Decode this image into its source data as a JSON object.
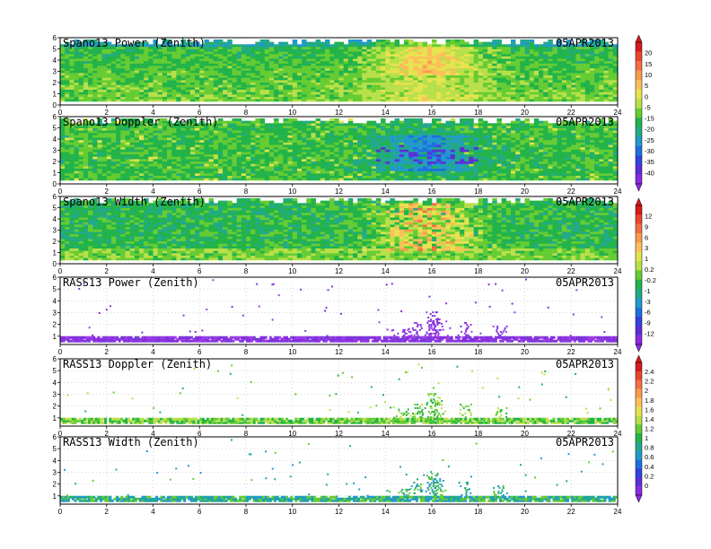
{
  "chart_data": [
    {
      "type": "heatmap",
      "title": "Spano13 Power (Zenith)",
      "date": "05APR2013",
      "x_ticks": [
        "0",
        "2",
        "4",
        "6",
        "8",
        "10",
        "12",
        "14",
        "16",
        "18",
        "20",
        "22",
        "24"
      ],
      "y_ticks": [
        "0",
        "1",
        "2",
        "3",
        "4",
        "5",
        "6"
      ],
      "xlim": [
        0,
        24
      ],
      "ylim": [
        0,
        6
      ],
      "colorbar_group": 0,
      "coverage": "full",
      "value_range": [
        -40,
        20
      ]
    },
    {
      "type": "heatmap",
      "title": "Spano13 Doppler (Zenith)",
      "date": "05APR2013",
      "x_ticks": [
        "0",
        "2",
        "4",
        "6",
        "8",
        "10",
        "12",
        "14",
        "16",
        "18",
        "20",
        "22",
        "24"
      ],
      "y_ticks": [
        "0",
        "1",
        "2",
        "3",
        "4",
        "5",
        "6"
      ],
      "xlim": [
        0,
        24
      ],
      "ylim": [
        0,
        6
      ],
      "colorbar_group": 0,
      "coverage": "full",
      "value_range": [
        -12,
        12
      ]
    },
    {
      "type": "heatmap",
      "title": "Spano13 Width (Zenith)",
      "date": "05APR2013",
      "x_ticks": [
        "0",
        "2",
        "4",
        "6",
        "8",
        "10",
        "12",
        "14",
        "16",
        "18",
        "20",
        "22",
        "24"
      ],
      "y_ticks": [
        "0",
        "1",
        "2",
        "3",
        "4",
        "5",
        "6"
      ],
      "xlim": [
        0,
        24
      ],
      "ylim": [
        0,
        6
      ],
      "colorbar_group": 1,
      "coverage": "full",
      "value_range": [
        0,
        2.4
      ]
    },
    {
      "type": "heatmap",
      "title": "RASS13 Power (Zenith)",
      "date": "05APR2013",
      "x_ticks": [
        "0",
        "2",
        "4",
        "6",
        "8",
        "10",
        "12",
        "14",
        "16",
        "18",
        "20",
        "22",
        "24"
      ],
      "y_ticks": [
        "1",
        "2",
        "3",
        "4",
        "5",
        "6"
      ],
      "xlim": [
        0,
        24
      ],
      "ylim": [
        0.3,
        6
      ],
      "colorbar_group": 1,
      "coverage": "sparse",
      "value_range": [
        -12,
        -6
      ]
    },
    {
      "type": "heatmap",
      "title": "RASS13 Doppler (Zenith)",
      "date": "05APR2013",
      "x_ticks": [
        "0",
        "2",
        "4",
        "6",
        "8",
        "10",
        "12",
        "14",
        "16",
        "18",
        "20",
        "22",
        "24"
      ],
      "y_ticks": [
        "1",
        "2",
        "3",
        "4",
        "5",
        "6"
      ],
      "xlim": [
        0,
        24
      ],
      "ylim": [
        0.3,
        6
      ],
      "colorbar_group": 2,
      "coverage": "sparse",
      "value_range": [
        1,
        1.4
      ]
    },
    {
      "type": "heatmap",
      "title": "RASS13 Width (Zenith)",
      "date": "05APR2013",
      "x_ticks": [
        "0",
        "2",
        "4",
        "6",
        "8",
        "10",
        "12",
        "14",
        "16",
        "18",
        "20",
        "22",
        "24"
      ],
      "y_ticks": [
        "1",
        "2",
        "3",
        "4",
        "5",
        "6"
      ],
      "xlim": [
        0,
        24
      ],
      "ylim": [
        0.3,
        6
      ],
      "colorbar_group": 2,
      "coverage": "sparse",
      "value_range": [
        0.6,
        1.2
      ]
    }
  ],
  "colorbars": [
    {
      "labels": [
        "20",
        "15",
        "10",
        "5",
        "0",
        "-5",
        "-15",
        "-20",
        "-25",
        "-30",
        "-35",
        "-40"
      ],
      "colors": [
        "#d7191c",
        "#e8452a",
        "#f46d43",
        "#f99b4b",
        "#fdbf5a",
        "#e6e34f",
        "#b8e04a",
        "#66cc33",
        "#22b34a",
        "#22aa88",
        "#2299cc",
        "#1f6fe0",
        "#3344dd",
        "#5a2fd6",
        "#8a2be2"
      ]
    },
    {
      "labels": [
        "12",
        "9",
        "6",
        "3",
        "1",
        "0.2",
        "-0.2",
        "-1",
        "-3",
        "-6",
        "-9",
        "-12"
      ],
      "colors": [
        "#d7191c",
        "#e8452a",
        "#f46d43",
        "#f99b4b",
        "#fdbf5a",
        "#e6e34f",
        "#b8e04a",
        "#66cc33",
        "#22b34a",
        "#22aa88",
        "#2299cc",
        "#1f6fe0",
        "#3344dd",
        "#5a2fd6",
        "#8a2be2"
      ]
    },
    {
      "labels": [
        "2.4",
        "2.2",
        "2",
        "1.8",
        "1.6",
        "1.4",
        "1.2",
        "1",
        "0.8",
        "0.6",
        "0.4",
        "0.2",
        "0"
      ],
      "colors": [
        "#d7191c",
        "#e8452a",
        "#f46d43",
        "#f99b4b",
        "#fdbf5a",
        "#e6e34f",
        "#b8e04a",
        "#66cc33",
        "#22b34a",
        "#22aa88",
        "#2299cc",
        "#1f6fe0",
        "#3344dd",
        "#5a2fd6",
        "#8a2be2"
      ]
    }
  ]
}
